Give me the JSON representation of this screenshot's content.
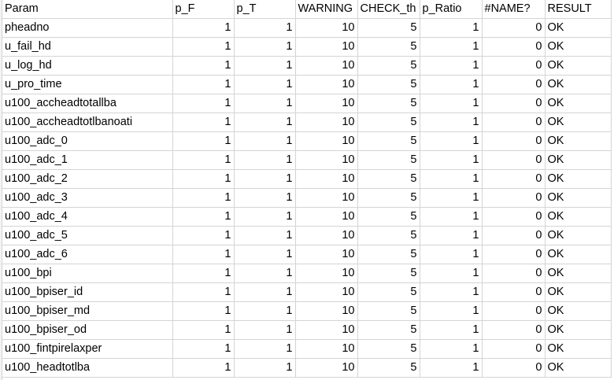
{
  "sheet": {
    "headers": [
      "Param",
      "p_F",
      "p_T",
      "WARNING",
      "CHECK_th",
      "p_Ratio",
      "#NAME?",
      "RESULT"
    ],
    "rows": [
      [
        "pheadno",
        "1",
        "1",
        "10",
        "5",
        "1",
        "0",
        "OK"
      ],
      [
        "u_fail_hd",
        "1",
        "1",
        "10",
        "5",
        "1",
        "0",
        "OK"
      ],
      [
        "u_log_hd",
        "1",
        "1",
        "10",
        "5",
        "1",
        "0",
        "OK"
      ],
      [
        "u_pro_time",
        "1",
        "1",
        "10",
        "5",
        "1",
        "0",
        "OK"
      ],
      [
        "u100_accheadtotallba",
        "1",
        "1",
        "10",
        "5",
        "1",
        "0",
        "OK"
      ],
      [
        "u100_accheadtotlbanoati",
        "1",
        "1",
        "10",
        "5",
        "1",
        "0",
        "OK"
      ],
      [
        "u100_adc_0",
        "1",
        "1",
        "10",
        "5",
        "1",
        "0",
        "OK"
      ],
      [
        "u100_adc_1",
        "1",
        "1",
        "10",
        "5",
        "1",
        "0",
        "OK"
      ],
      [
        "u100_adc_2",
        "1",
        "1",
        "10",
        "5",
        "1",
        "0",
        "OK"
      ],
      [
        "u100_adc_3",
        "1",
        "1",
        "10",
        "5",
        "1",
        "0",
        "OK"
      ],
      [
        "u100_adc_4",
        "1",
        "1",
        "10",
        "5",
        "1",
        "0",
        "OK"
      ],
      [
        "u100_adc_5",
        "1",
        "1",
        "10",
        "5",
        "1",
        "0",
        "OK"
      ],
      [
        "u100_adc_6",
        "1",
        "1",
        "10",
        "5",
        "1",
        "0",
        "OK"
      ],
      [
        "u100_bpi",
        "1",
        "1",
        "10",
        "5",
        "1",
        "0",
        "OK"
      ],
      [
        "u100_bpiser_id",
        "1",
        "1",
        "10",
        "5",
        "1",
        "0",
        "OK"
      ],
      [
        "u100_bpiser_md",
        "1",
        "1",
        "10",
        "5",
        "1",
        "0",
        "OK"
      ],
      [
        "u100_bpiser_od",
        "1",
        "1",
        "10",
        "5",
        "1",
        "0",
        "OK"
      ],
      [
        "u100_fintpirelaxper",
        "1",
        "1",
        "10",
        "5",
        "1",
        "0",
        "OK"
      ],
      [
        "u100_headtotlba",
        "1",
        "1",
        "10",
        "5",
        "1",
        "0",
        "OK"
      ]
    ]
  }
}
